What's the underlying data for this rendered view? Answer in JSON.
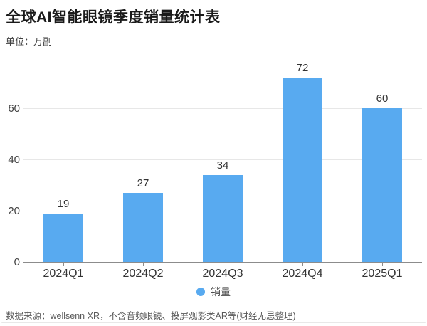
{
  "header": {
    "title": "全球AI智能眼镜季度销量统计表",
    "unit_label": "单位：万副"
  },
  "chart_data": {
    "type": "bar",
    "categories": [
      "2024Q1",
      "2024Q2",
      "2024Q3",
      "2024Q4",
      "2025Q1"
    ],
    "series": [
      {
        "name": "销量",
        "values": [
          19,
          27,
          34,
          72,
          60
        ]
      }
    ],
    "title": "全球AI智能眼镜季度销量统计表",
    "xlabel": "",
    "ylabel": "单位：万副",
    "ylim": [
      0,
      80
    ],
    "yticks": [
      0,
      20,
      40,
      60
    ],
    "grid": true,
    "legend_position": "bottom",
    "bar_color": "#58aaf0",
    "data_labels_shown": true
  },
  "legend": {
    "label": "销量",
    "dot_color": "#58aaf0"
  },
  "footer": {
    "source_text": "数据来源：wellsenn XR，不含音频眼镜、投屏观影类AR等(财经无忌整理)"
  },
  "colors": {
    "bar": "#58aaf0",
    "gridline": "#e7e7e7",
    "axis_line": "#8c8c8c",
    "label_text": "#333333",
    "axis_text": "#404040",
    "footer_text": "#595959"
  }
}
